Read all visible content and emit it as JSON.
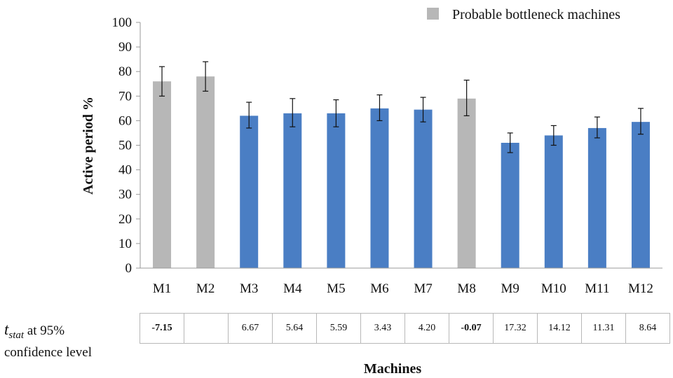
{
  "chart_data": {
    "type": "bar",
    "title": "",
    "categories": [
      "M1",
      "M2",
      "M3",
      "M4",
      "M5",
      "M6",
      "M7",
      "M8",
      "M9",
      "M10",
      "M11",
      "M12"
    ],
    "values": [
      76,
      78,
      62,
      63,
      63,
      65,
      64.5,
      69,
      51,
      54,
      57,
      59.5
    ],
    "error_low": [
      70,
      72,
      57,
      57.5,
      57.5,
      60,
      59.5,
      62,
      47,
      50,
      53,
      54.5
    ],
    "error_high": [
      82,
      84,
      67.5,
      69,
      68.5,
      70.5,
      69.5,
      76.5,
      55,
      58,
      61.5,
      65
    ],
    "highlighted": [
      "M1",
      "M2",
      "M8"
    ],
    "xlabel": "Machines",
    "ylabel": "Active period %",
    "ylim": [
      0,
      100
    ],
    "yticks": [
      0,
      10,
      20,
      30,
      40,
      50,
      60,
      70,
      80,
      90,
      100
    ],
    "grid": false,
    "legend": {
      "position": "top-right",
      "entries": [
        {
          "label": "Probable bottleneck machines",
          "color": "#b7b7b7"
        }
      ]
    },
    "colors": {
      "bar": "#4a7ec4",
      "bottleneck": "#b7b7b7",
      "error_bar": "#111111",
      "axis": "#999999"
    }
  },
  "tstat": {
    "label_line1_suffix": "at 95%",
    "label_line2": "confidence level",
    "t_symbol": "t",
    "t_subscript": "stat",
    "values": [
      "-7.15",
      "",
      "6.67",
      "5.64",
      "5.59",
      "3.43",
      "4.20",
      "-0.07",
      "17.32",
      "14.12",
      "11.31",
      "8.64"
    ],
    "bold_indices": [
      0,
      7
    ]
  }
}
